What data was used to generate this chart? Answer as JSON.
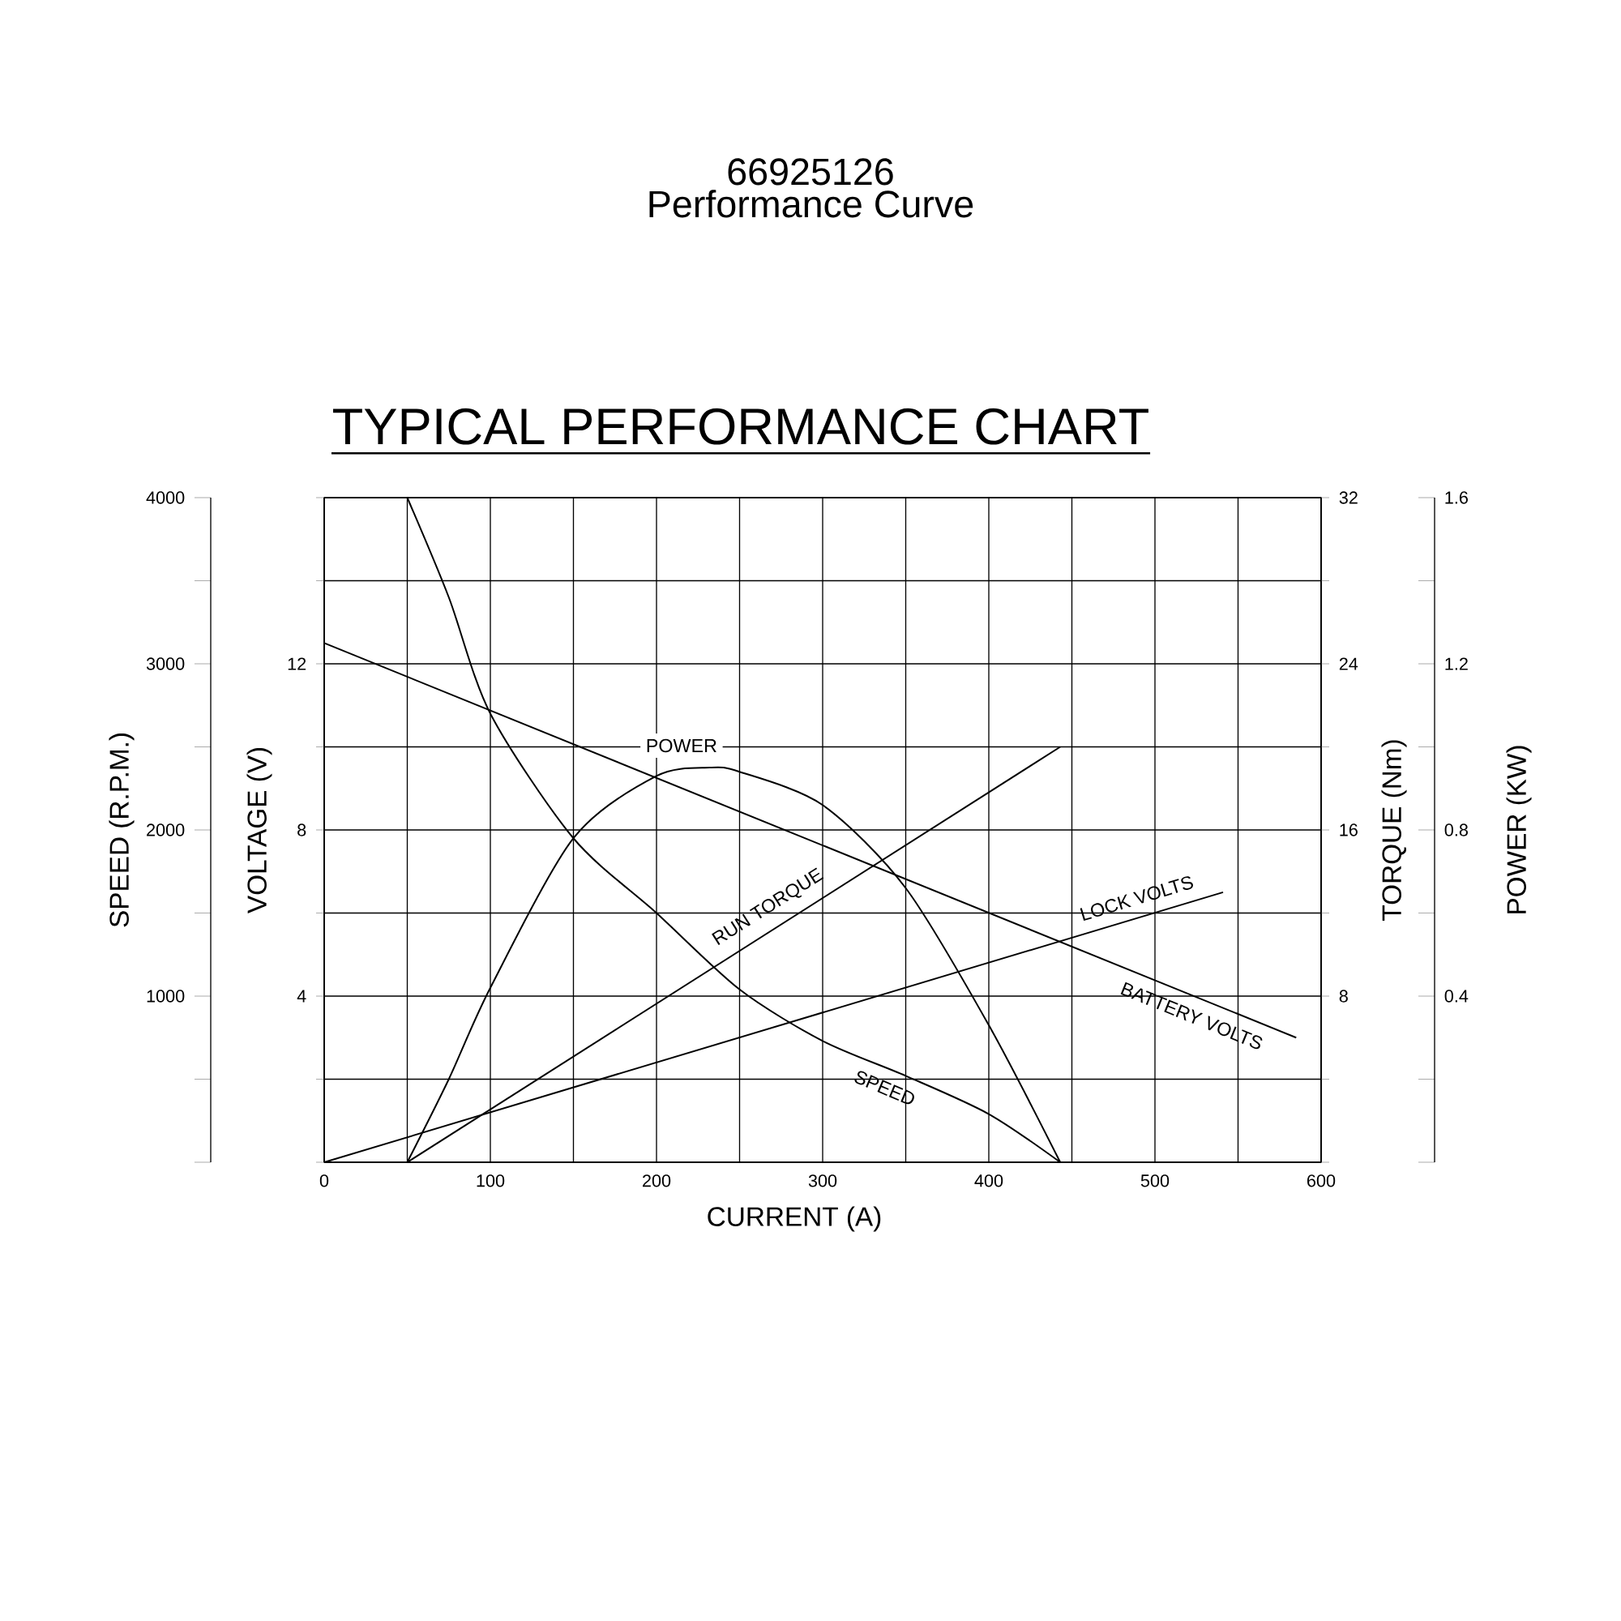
{
  "chart_data": [
    {
      "type": "line",
      "title": "66925126",
      "subtitle": "Performance Curve",
      "annotations": [
        "TYPICAL PERFORMANCE CHART"
      ],
      "xlabel": "CURRENT (A)",
      "ylabel": "SPEED (R.P.M.)",
      "y2label": "VOLTAGE (V)",
      "y3label": "TORQUE (Nm)",
      "xlim": [
        0,
        600
      ],
      "xticks": [
        0,
        {
          "value": 50,
          "label": null
        },
        100,
        {
          "value": 150,
          "label": null
        },
        200,
        {
          "value": 250,
          "label": null
        },
        300,
        {
          "value": 350,
          "label": null
        },
        400,
        {
          "value": 450,
          "label": null
        },
        500,
        {
          "value": 550,
          "label": null
        },
        600
      ],
      "ylim": [
        0,
        4000
      ],
      "yticks": [
        {
          "value": 0,
          "label": null
        },
        {
          "value": 500,
          "label": null
        },
        1000,
        {
          "value": 1500,
          "label": null
        },
        2000,
        {
          "value": 2500,
          "label": null
        },
        3000,
        {
          "value": 3500,
          "label": null
        },
        4000
      ],
      "y2lim": [
        0,
        16
      ],
      "y2ticks": [
        {
          "value": 0,
          "label": null
        },
        {
          "value": 2,
          "label": null
        },
        4,
        {
          "value": 6,
          "label": null
        },
        8,
        {
          "value": 10,
          "label": null
        },
        12,
        {
          "value": 14,
          "label": null
        },
        {
          "value": 16,
          "label": null
        }
      ],
      "y3lim": [
        0,
        32
      ],
      "y3ticks": [
        {
          "value": 0,
          "label": null
        },
        {
          "value": 4,
          "label": null
        },
        8,
        {
          "value": 12,
          "label": null
        },
        16,
        {
          "value": 20,
          "label": null
        },
        24,
        {
          "value": 28,
          "label": null
        },
        32
      ],
      "grid": true,
      "series": [
        {
          "name": "SPEED",
          "color": "#000000",
          "x": [
            50,
            75,
            100,
            150,
            200,
            250,
            300,
            350,
            400,
            443
          ],
          "values": [
            4000,
            3400,
            2700,
            1950,
            1500,
            1040,
            730,
            520,
            290,
            0
          ]
        },
        {
          "name": "RUN TORQUE",
          "color": "#000000",
          "axis": "y3",
          "x": [
            50,
            443
          ],
          "values": [
            0,
            20
          ]
        },
        {
          "name": "LOCK VOLTS",
          "color": "#000000",
          "axis": "y2",
          "x": [
            0,
            541
          ],
          "values": [
            0,
            6.5
          ]
        },
        {
          "name": "BATTERY VOLTS",
          "color": "#000000",
          "axis": "y2",
          "x": [
            0,
            585
          ],
          "values": [
            12.5,
            3
          ]
        }
      ]
    },
    {
      "type": "line",
      "ylabel": "POWER (KW)",
      "xlim": [
        0,
        600
      ],
      "ylim": [
        0,
        1.6
      ],
      "yticks": [
        {
          "value": 0,
          "label": null
        },
        {
          "value": 0.2,
          "label": null
        },
        0.4,
        {
          "value": 0.6,
          "label": null
        },
        0.8,
        {
          "value": 1.0,
          "label": null
        },
        1.2,
        {
          "value": 1.4,
          "label": null
        },
        1.6
      ],
      "tick_labels": "y",
      "series": [
        {
          "name": "POWER",
          "color": "#000000",
          "x": [
            50,
            75,
            100,
            150,
            200,
            232,
            250,
            300,
            350,
            400,
            443
          ],
          "values": [
            0,
            0.2,
            0.42,
            0.78,
            0.93,
            0.95,
            0.94,
            0.86,
            0.66,
            0.33,
            0
          ]
        }
      ]
    }
  ]
}
